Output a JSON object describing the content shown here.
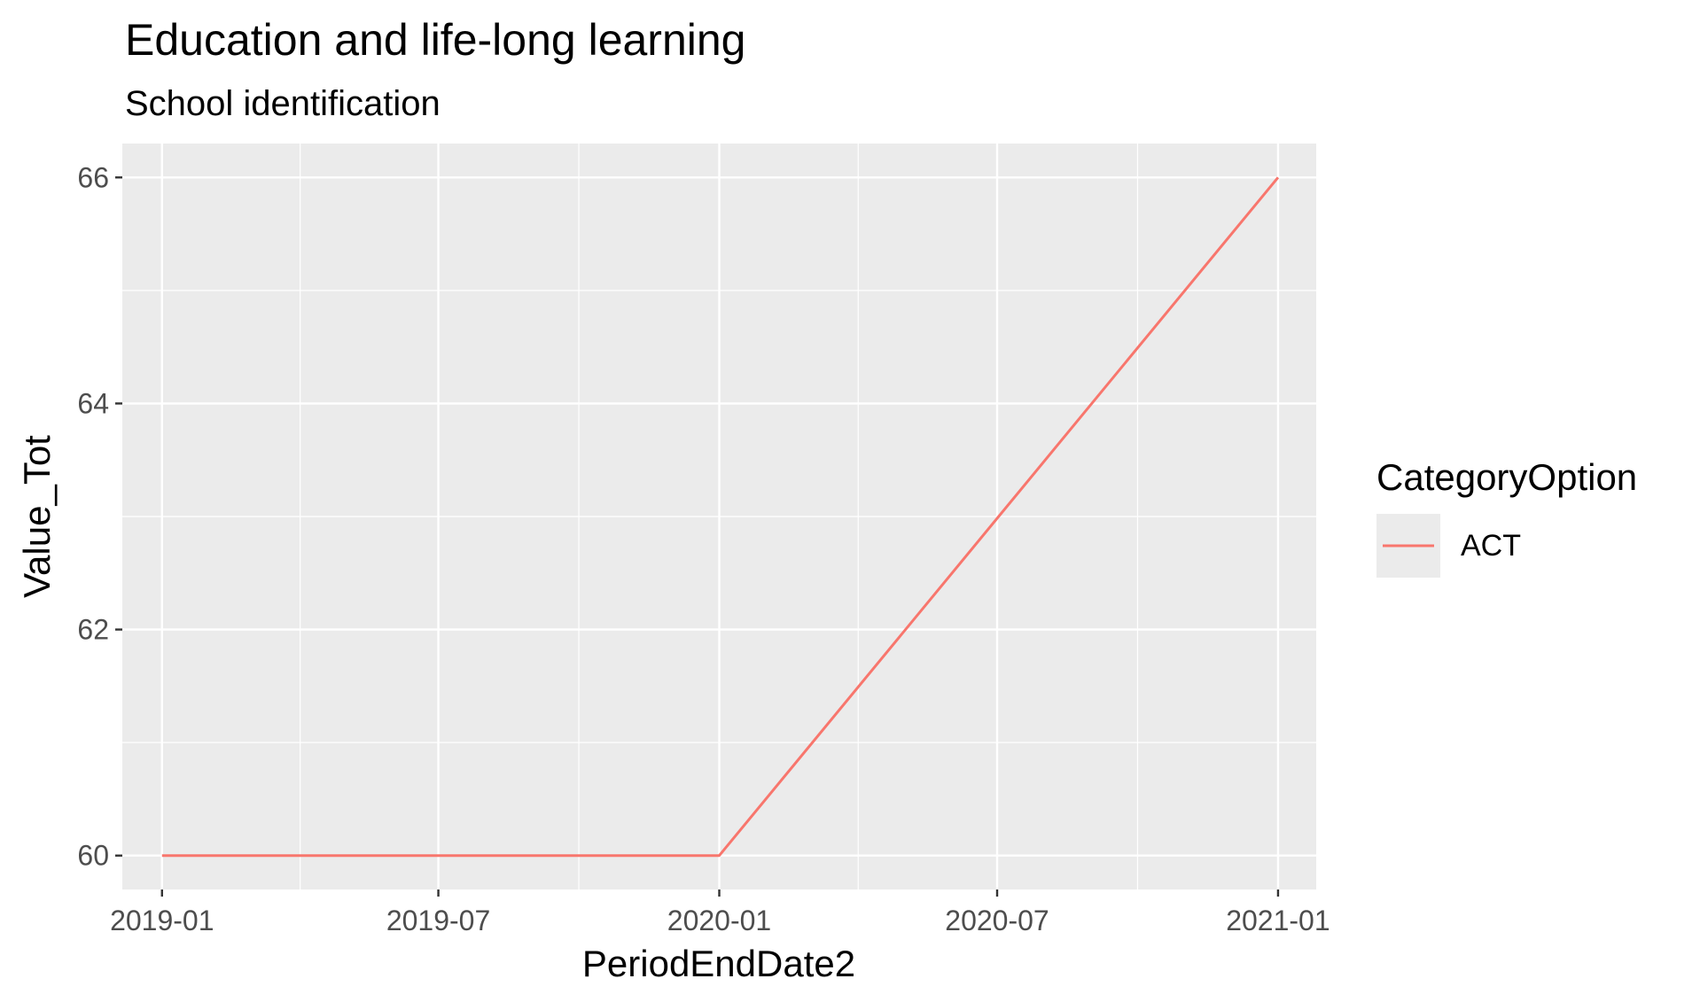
{
  "chart_data": {
    "type": "line",
    "title": "Education and life-long learning",
    "subtitle": "School identification",
    "xlabel": "PeriodEndDate2",
    "ylabel": "Value_Tot",
    "x_ticks": [
      "2019-01",
      "2019-07",
      "2020-01",
      "2020-07",
      "2021-01"
    ],
    "y_ticks": [
      60,
      62,
      64,
      66
    ],
    "ylim": [
      59.7,
      66.3
    ],
    "xlim": [
      "2018-12-06",
      "2021-01-26"
    ],
    "grid": true,
    "legend": {
      "title": "CategoryOption",
      "placement": "right"
    },
    "series": [
      {
        "name": "ACT",
        "color": "#F8766D",
        "points": [
          {
            "x": "2019-01-01",
            "y": 60
          },
          {
            "x": "2020-01-01",
            "y": 60
          },
          {
            "x": "2021-01-01",
            "y": 66
          }
        ]
      }
    ],
    "colors": {
      "panel": "#EBEBEB",
      "grid": "#FFFFFF",
      "axis_text": "#4D4D4D",
      "tick": "#333333"
    }
  }
}
